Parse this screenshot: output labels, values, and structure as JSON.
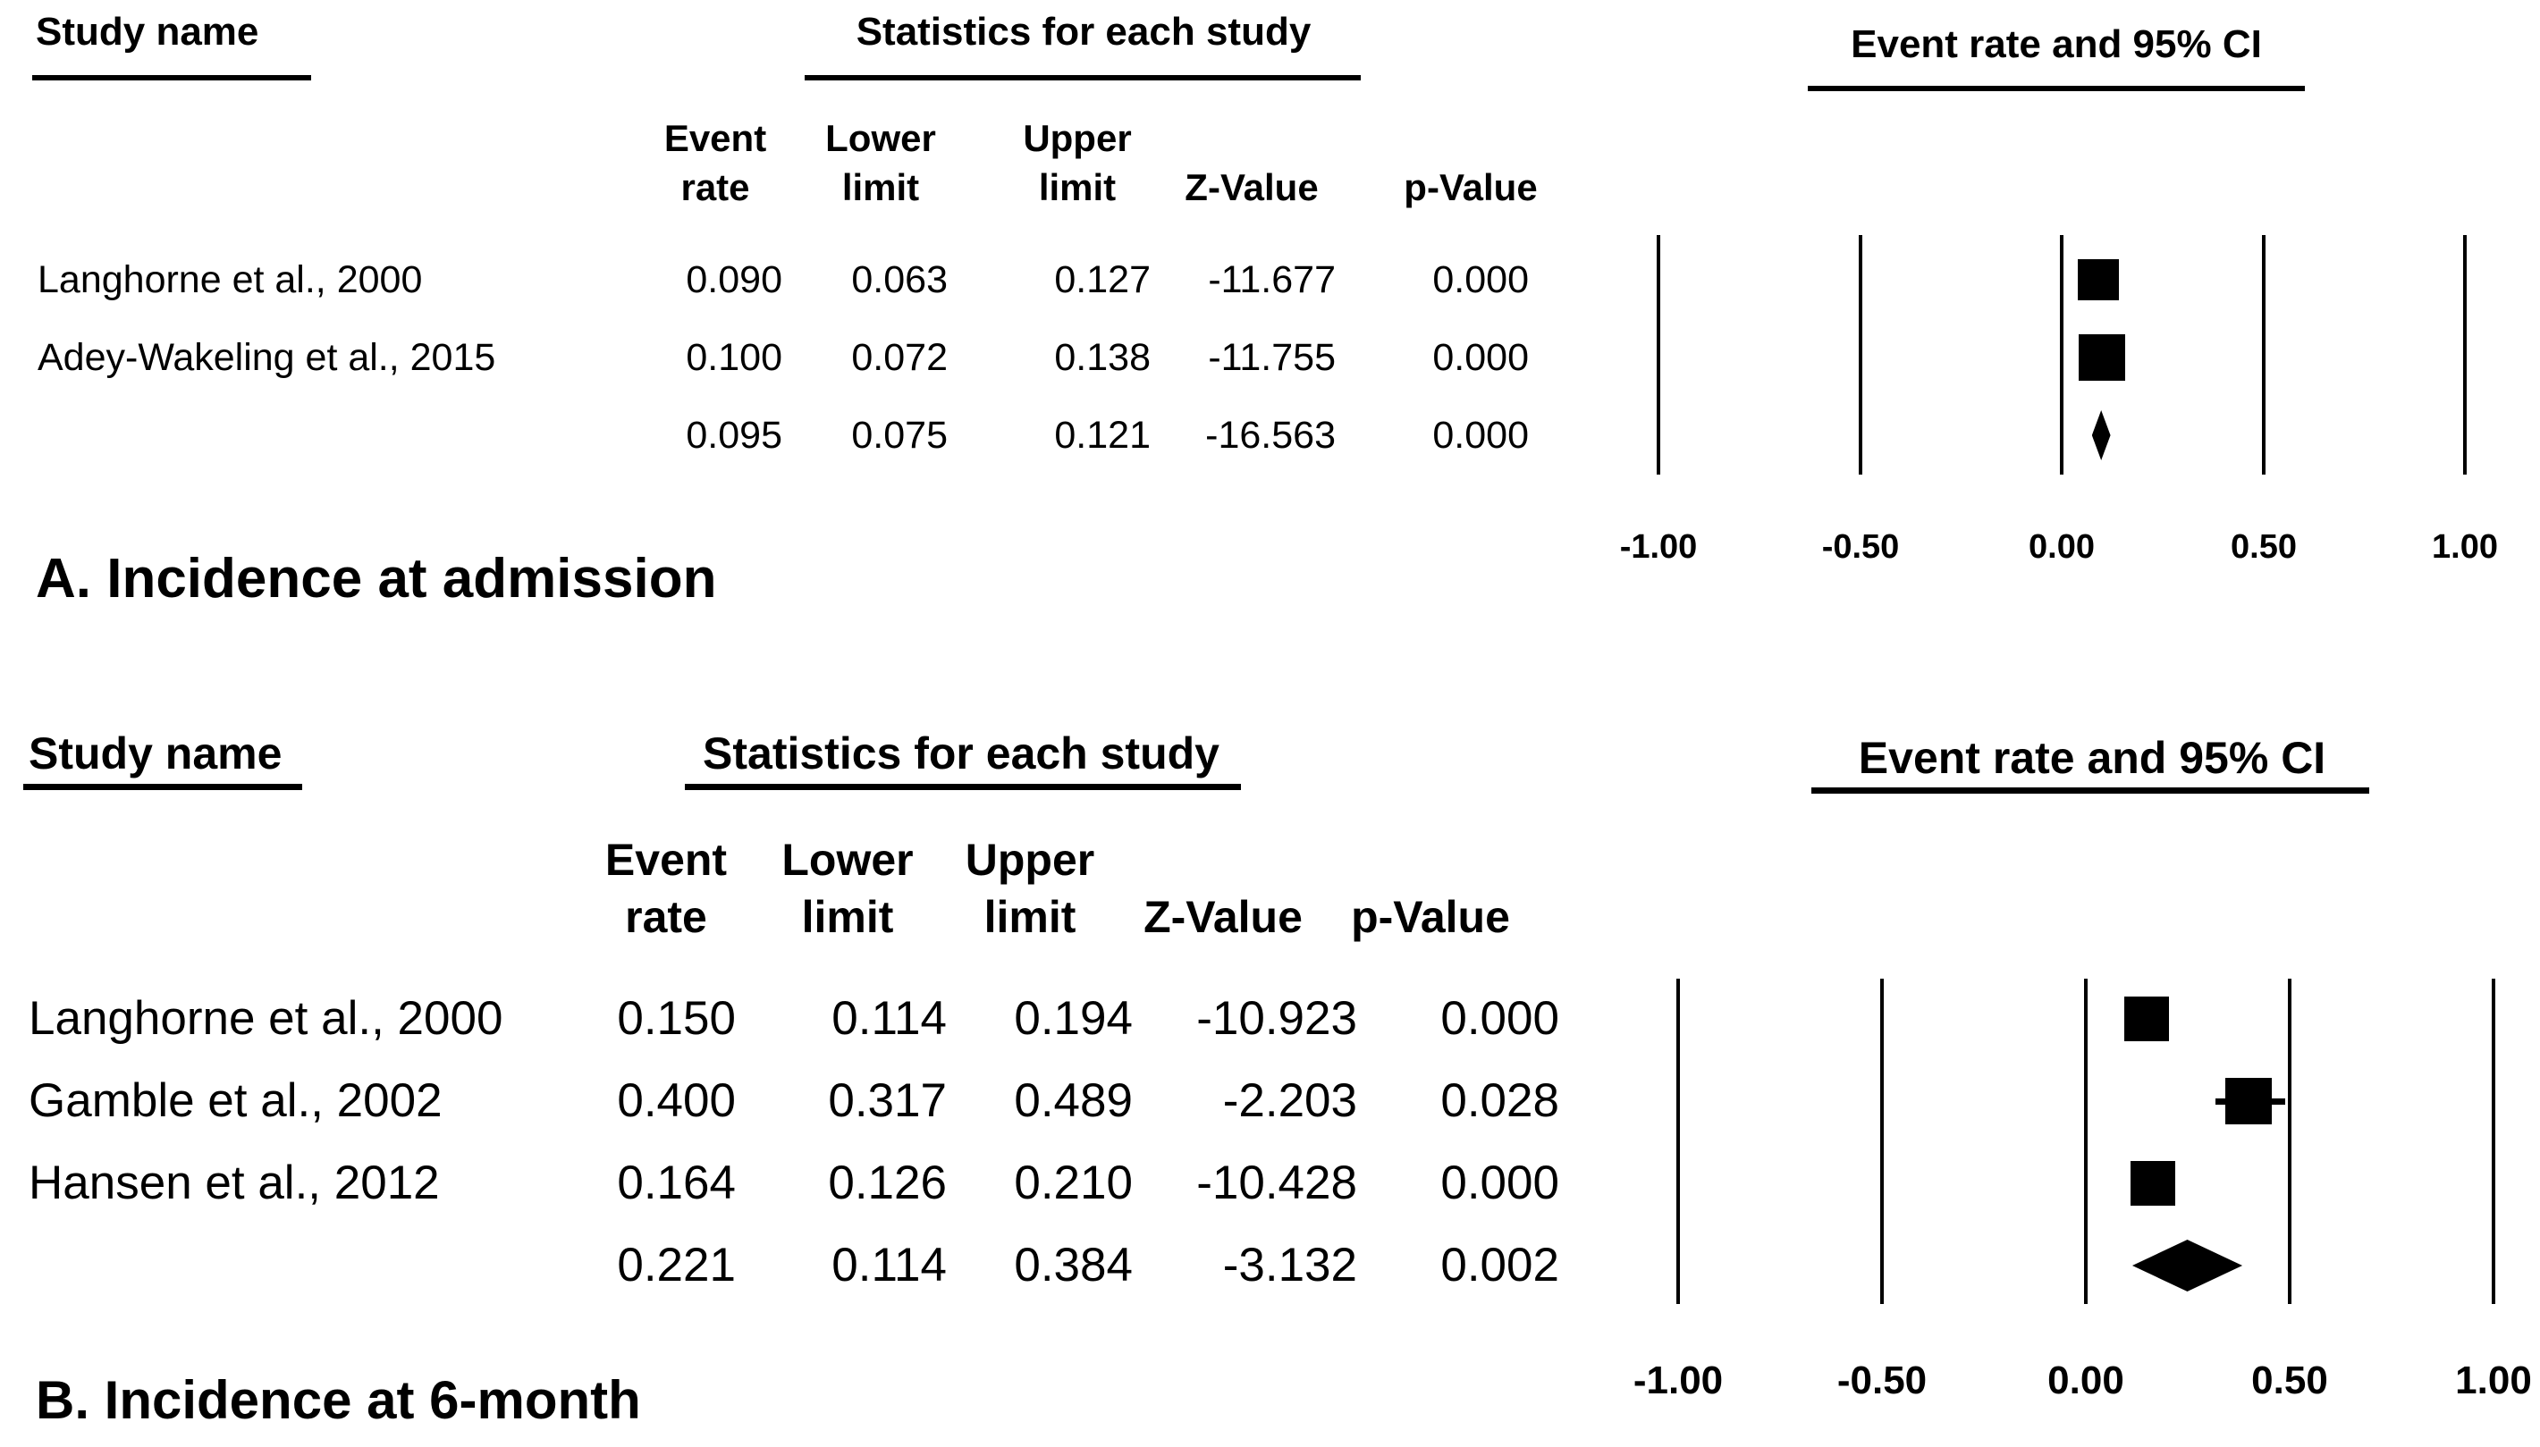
{
  "figure": {
    "description": "Forest plots of event rate and 95% CI",
    "accent_color": "#000000",
    "background_color": "#ffffff"
  },
  "panels": [
    {
      "id": "A",
      "title": "A. Incidence at admission",
      "headers": {
        "study": "Study name",
        "stats": "Statistics for each study",
        "plot": "Event rate and 95% CI"
      },
      "cols": [
        {
          "l1": "Event",
          "l2": "rate"
        },
        {
          "l1": "Lower",
          "l2": "limit"
        },
        {
          "l1": "Upper",
          "l2": "limit"
        },
        {
          "l1": "",
          "l2": "Z-Value"
        },
        {
          "l1": "",
          "l2": "p-Value"
        }
      ],
      "rows": [
        {
          "study": "Langhorne et al., 2000",
          "rate": "0.090",
          "lower": "0.063",
          "upper": "0.127",
          "z": "-11.677",
          "p": "0.000"
        },
        {
          "study": "Adey-Wakeling et al., 2015",
          "rate": "0.100",
          "lower": "0.072",
          "upper": "0.138",
          "z": "-11.755",
          "p": "0.000"
        },
        {
          "study": "",
          "rate": "0.095",
          "lower": "0.075",
          "upper": "0.121",
          "z": "-16.563",
          "p": "0.000"
        }
      ],
      "ticks": [
        "-1.00",
        "-0.50",
        "0.00",
        "0.50",
        "1.00"
      ]
    },
    {
      "id": "B",
      "title": "B. Incidence at 6-month",
      "headers": {
        "study": "Study name",
        "stats": "Statistics for each study",
        "plot": "Event rate and 95% CI"
      },
      "cols": [
        {
          "l1": "Event",
          "l2": "rate"
        },
        {
          "l1": "Lower",
          "l2": "limit"
        },
        {
          "l1": "Upper",
          "l2": "limit"
        },
        {
          "l1": "",
          "l2": "Z-Value"
        },
        {
          "l1": "",
          "l2": "p-Value"
        }
      ],
      "rows": [
        {
          "study": "Langhorne et al., 2000",
          "rate": "0.150",
          "lower": "0.114",
          "upper": "0.194",
          "z": "-10.923",
          "p": "0.000"
        },
        {
          "study": "Gamble et al., 2002",
          "rate": "0.400",
          "lower": "0.317",
          "upper": "0.489",
          "z": "-2.203",
          "p": "0.028"
        },
        {
          "study": "Hansen et al., 2012",
          "rate": "0.164",
          "lower": "0.126",
          "upper": "0.210",
          "z": "-10.428",
          "p": "0.000"
        },
        {
          "study": "",
          "rate": "0.221",
          "lower": "0.114",
          "upper": "0.384",
          "z": "-3.132",
          "p": "0.002"
        }
      ],
      "ticks": [
        "-1.00",
        "-0.50",
        "0.00",
        "0.50",
        "1.00"
      ]
    }
  ],
  "chart_data": [
    {
      "type": "scatter",
      "subtype": "forest-plot",
      "title": "A. Incidence at admission",
      "xlabel": "Event rate and 95% CI",
      "ylabel": "",
      "xlim": [
        -1.25,
        1.25
      ],
      "x_ticks": [
        -1.0,
        -0.5,
        0.0,
        0.5,
        1.0
      ],
      "grid": false,
      "legend_position": "none",
      "series": [
        {
          "name": "Langhorne et al., 2000",
          "event_rate": 0.09,
          "lower": 0.063,
          "upper": 0.127,
          "z_value": -11.677,
          "p_value": 0.0,
          "marker": "square"
        },
        {
          "name": "Adey-Wakeling et al., 2015",
          "event_rate": 0.1,
          "lower": 0.072,
          "upper": 0.138,
          "z_value": -11.755,
          "p_value": 0.0,
          "marker": "square"
        },
        {
          "name": "",
          "event_rate": 0.095,
          "lower": 0.075,
          "upper": 0.121,
          "z_value": -16.563,
          "p_value": 0.0,
          "marker": "diamond"
        }
      ]
    },
    {
      "type": "scatter",
      "subtype": "forest-plot",
      "title": "B. Incidence at 6-month",
      "xlabel": "Event rate and 95% CI",
      "ylabel": "",
      "xlim": [
        -1.25,
        1.25
      ],
      "x_ticks": [
        -1.0,
        -0.5,
        0.0,
        0.5,
        1.0
      ],
      "grid": false,
      "legend_position": "none",
      "series": [
        {
          "name": "Langhorne et al., 2000",
          "event_rate": 0.15,
          "lower": 0.114,
          "upper": 0.194,
          "z_value": -10.923,
          "p_value": 0.0,
          "marker": "square"
        },
        {
          "name": "Gamble et al., 2002",
          "event_rate": 0.4,
          "lower": 0.317,
          "upper": 0.489,
          "z_value": -2.203,
          "p_value": 0.028,
          "marker": "square"
        },
        {
          "name": "Hansen et al., 2012",
          "event_rate": 0.164,
          "lower": 0.126,
          "upper": 0.21,
          "z_value": -10.428,
          "p_value": 0.0,
          "marker": "square"
        },
        {
          "name": "",
          "event_rate": 0.221,
          "lower": 0.114,
          "upper": 0.384,
          "z_value": -3.132,
          "p_value": 0.002,
          "marker": "diamond"
        }
      ]
    }
  ]
}
